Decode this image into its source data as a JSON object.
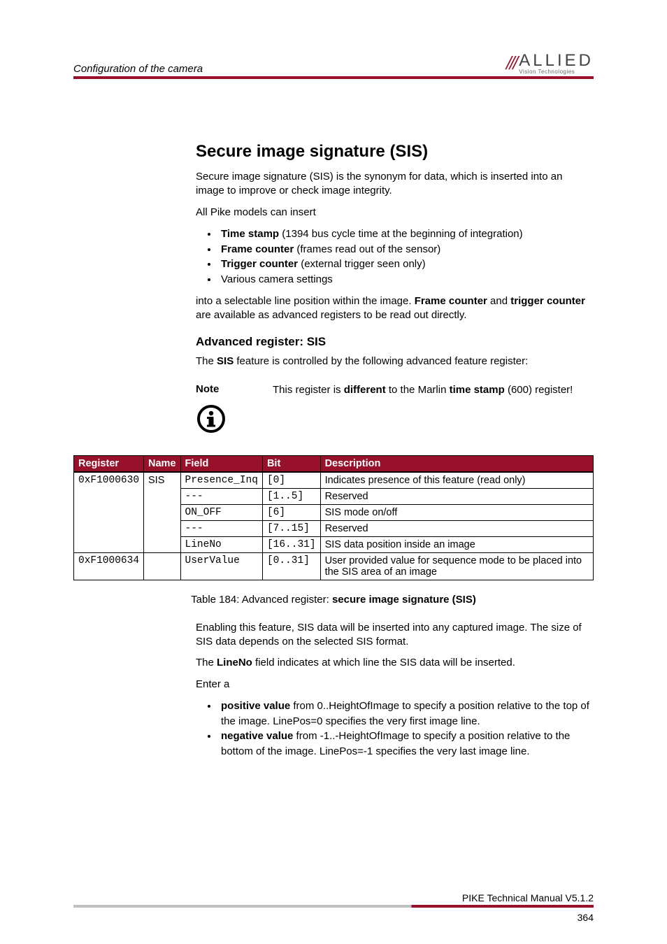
{
  "header": {
    "title": "Configuration of the camera",
    "logo_mark": "///",
    "logo_main": "ALLIED",
    "logo_sub": "Vision Technologies"
  },
  "section": {
    "title": "Secure image signature (SIS)",
    "p1": "Secure image signature (SIS) is the synonym for data, which is inserted into an image to improve or check image integrity.",
    "p2": "All Pike models can insert",
    "list": [
      {
        "b": "Time stamp",
        "rest": " (1394 bus cycle time at the beginning of integration)"
      },
      {
        "b": "Frame counter",
        "rest": " (frames read out of the sensor)"
      },
      {
        "b": "Trigger counter",
        "rest": " (external trigger seen only)"
      },
      {
        "b": "",
        "rest": "Various camera settings"
      }
    ],
    "p3a": "into a selectable line position within the image. ",
    "p3b1": "Frame counter",
    "p3m": " and ",
    "p3b2": "trigger counter",
    "p3c": " are available as advanced registers to be read out directly."
  },
  "sub": {
    "title": "Advanced register: SIS",
    "p1a": "The ",
    "p1b": "SIS",
    "p1c": " feature is controlled by the following advanced feature register:"
  },
  "note": {
    "label": "Note",
    "t1": "This register is ",
    "t2": "different",
    "t3": " to the Marlin ",
    "t4": "time stamp",
    "t5": " (600) register!"
  },
  "table": {
    "headers": [
      "Register",
      "Name",
      "Field",
      "Bit",
      "Description"
    ],
    "rows": [
      {
        "reg": "0xF1000630",
        "name": "SIS",
        "field": "Presence_Inq",
        "bit": "[0]",
        "desc": "Indicates presence of this feature (read only)",
        "rs_reg": 5,
        "rs_name": 5
      },
      {
        "field": "---",
        "bit": "[1..5]",
        "desc": "Reserved"
      },
      {
        "field": "ON_OFF",
        "bit": "[6]",
        "desc": "SIS mode on/off"
      },
      {
        "field": "---",
        "bit": "[7..15]",
        "desc": "Reserved"
      },
      {
        "field": "LineNo",
        "bit": "[16..31]",
        "desc": "SIS data position inside an image"
      },
      {
        "reg": "0xF1000634",
        "name": "",
        "field": "UserValue",
        "bit": "[0..31]",
        "desc": "User provided value for sequence mode to be placed into the SIS area of an image"
      }
    ],
    "caption_pre": "Table 184: Advanced register: ",
    "caption_b": "secure image signature (SIS)"
  },
  "after": {
    "p1": "Enabling this feature, SIS data will be inserted into any captured image. The size of SIS data depends on the selected SIS format.",
    "p2a": "The ",
    "p2b": "LineNo",
    "p2c": " field indicates at which line the SIS data will be inserted.",
    "p3": "Enter a",
    "list": [
      {
        "b": "positive value",
        "rest": " from 0..HeightOfImage to specify a position relative to the top of the image. LinePos=0 specifies the very first image line."
      },
      {
        "b": "negative value",
        "rest": " from -1..-HeightOfImage to specify a position relative to the bottom of the image. LinePos=-1 specifies the very last image line."
      }
    ]
  },
  "footer": {
    "doc": "PIKE Technical Manual V5.1.2",
    "page": "364"
  },
  "colors": {
    "accent": "#98112b",
    "grey": "#bfbfbf"
  }
}
